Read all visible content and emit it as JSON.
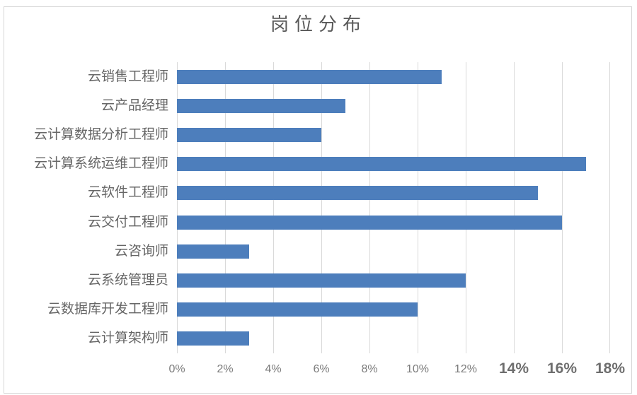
{
  "title": "岗位分布",
  "colors": {
    "bar": "#4d7ebc",
    "gridline": "#d9d9d9",
    "border": "#d6d6d6",
    "title_text": "#595959",
    "label_text": "#666666",
    "tick_text": "#7b7b7b",
    "tick_large_text": "#6e6e6e"
  },
  "chart_data": {
    "type": "bar",
    "orientation": "horizontal",
    "title": "岗位分布",
    "categories": [
      "云销售工程师",
      "云产品经理",
      "云计算数据分析工程师",
      "云计算系统运维工程师",
      "云软件工程师",
      "云交付工程师",
      "云咨询师",
      "云系统管理员",
      "云数据库开发工程师",
      "云计算架构师"
    ],
    "values": [
      11,
      7,
      6,
      17,
      15,
      16,
      3,
      12,
      10,
      3
    ],
    "unit": "%",
    "xlabel": "",
    "ylabel": "",
    "xlim": [
      0,
      18
    ],
    "x_tick_step": 2,
    "x_ticks": [
      "0%",
      "2%",
      "4%",
      "6%",
      "8%",
      "10%",
      "12%",
      "14%",
      "16%",
      "18%"
    ],
    "grid": "vertical",
    "legend": "none"
  }
}
